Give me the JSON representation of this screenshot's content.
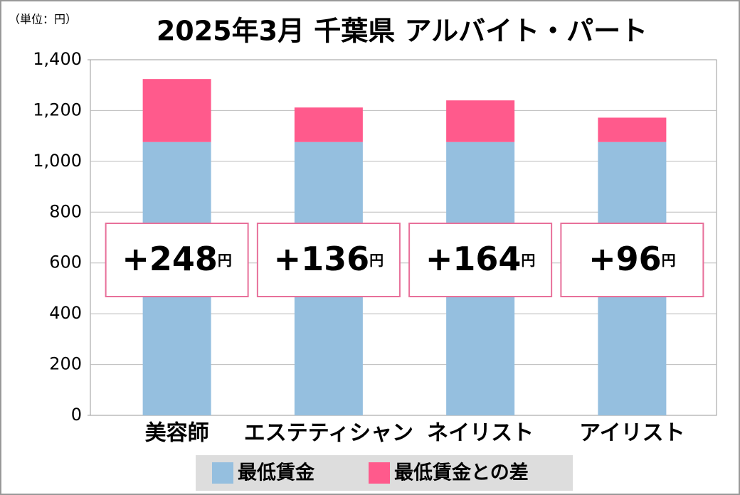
{
  "chart_data": {
    "type": "stacked-bar",
    "title": "2025年3月 千葉県 アルバイト・パート",
    "unit_note": "（単位：円）",
    "categories": [
      "美容師",
      "エステティシャン",
      "ネイリスト",
      "アイリスト"
    ],
    "series": [
      {
        "name": "最低賃金",
        "color": "#95bfdf",
        "values": [
          1076,
          1076,
          1076,
          1076
        ]
      },
      {
        "name": "最低賃金との差",
        "color": "#ff5a8c",
        "values": [
          248,
          136,
          164,
          96
        ],
        "value_labels": [
          "+248",
          "+136",
          "+164",
          "+96"
        ],
        "value_label_unit": "円"
      }
    ],
    "ylim": [
      0,
      1400
    ],
    "yticks": [
      0,
      200,
      400,
      600,
      800,
      {
        "value": 1000,
        "label": "1,000"
      },
      {
        "value": 1200,
        "label": "1,200"
      },
      {
        "value": 1400,
        "label": "1,400"
      }
    ],
    "grid": true
  }
}
